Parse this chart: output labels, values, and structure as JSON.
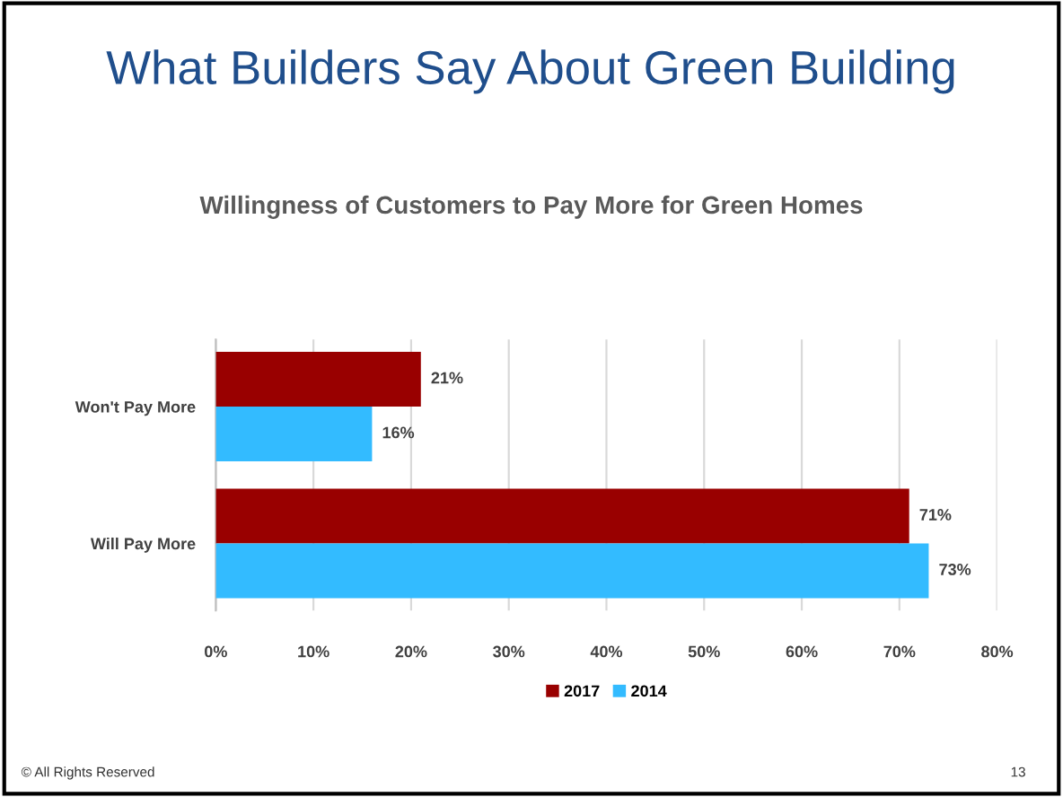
{
  "chart_data": {
    "type": "bar",
    "orientation": "horizontal",
    "title": "What Builders Say About Green Building",
    "subtitle": "Willingness of Customers to Pay More for Green Homes",
    "categories": [
      "Won't Pay More",
      "Will Pay More"
    ],
    "series": [
      {
        "name": "2017",
        "color": "#990000",
        "values": [
          21,
          71
        ],
        "value_labels": [
          "21%",
          "71%"
        ]
      },
      {
        "name": "2014",
        "color": "#33bbff",
        "values": [
          16,
          73
        ],
        "value_labels": [
          "16%",
          "73%"
        ]
      }
    ],
    "xlim": [
      0,
      80
    ],
    "xticks": [
      {
        "value": 0,
        "label": "0%"
      },
      {
        "value": 10,
        "label": "10%"
      },
      {
        "value": 20,
        "label": "20%"
      },
      {
        "value": 30,
        "label": "30%"
      },
      {
        "value": 40,
        "label": "40%"
      },
      {
        "value": 50,
        "label": "50%"
      },
      {
        "value": 60,
        "label": "60%"
      },
      {
        "value": 70,
        "label": "70%"
      },
      {
        "value": 80,
        "label": "80%"
      }
    ],
    "grid": "x",
    "legend": "bottom",
    "annotations": [
      "© All Rights Reserved",
      "13"
    ]
  }
}
